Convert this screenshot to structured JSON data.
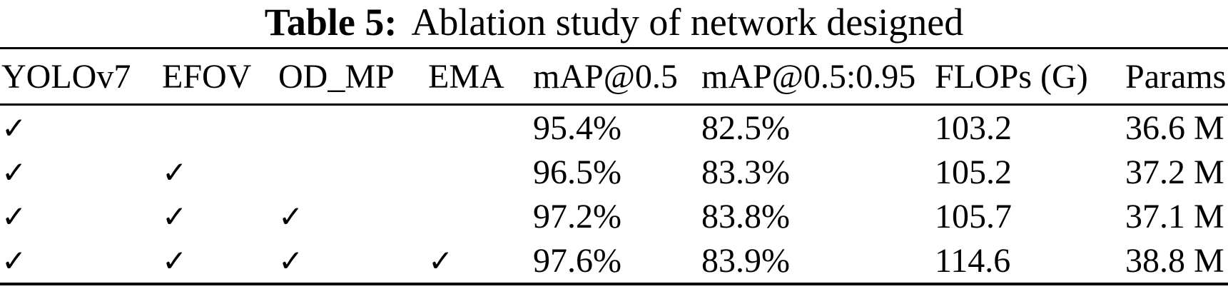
{
  "caption": {
    "label": "Table 5:",
    "text": "Ablation study of network designed"
  },
  "table": {
    "columns": [
      "YOLOv7",
      "EFOV",
      "OD_MP",
      "EMA",
      "mAP@0.5",
      "mAP@0.5:0.95",
      "FLOPs (G)",
      "Params"
    ],
    "check_glyph": "✓",
    "rows": [
      [
        "✓",
        "",
        "",
        "",
        "95.4%",
        "82.5%",
        "103.2",
        "36.6 M"
      ],
      [
        "✓",
        "✓",
        "",
        "",
        "96.5%",
        "83.3%",
        "105.2",
        "37.2 M"
      ],
      [
        "✓",
        "✓",
        "✓",
        "",
        "97.2%",
        "83.8%",
        "105.7",
        "37.1 M"
      ],
      [
        "✓",
        "✓",
        "✓",
        "✓",
        "97.6%",
        "83.9%",
        "114.6",
        "38.8 M"
      ]
    ]
  },
  "colors": {
    "text": "#000000",
    "background": "#ffffff",
    "rule": "#000000"
  }
}
